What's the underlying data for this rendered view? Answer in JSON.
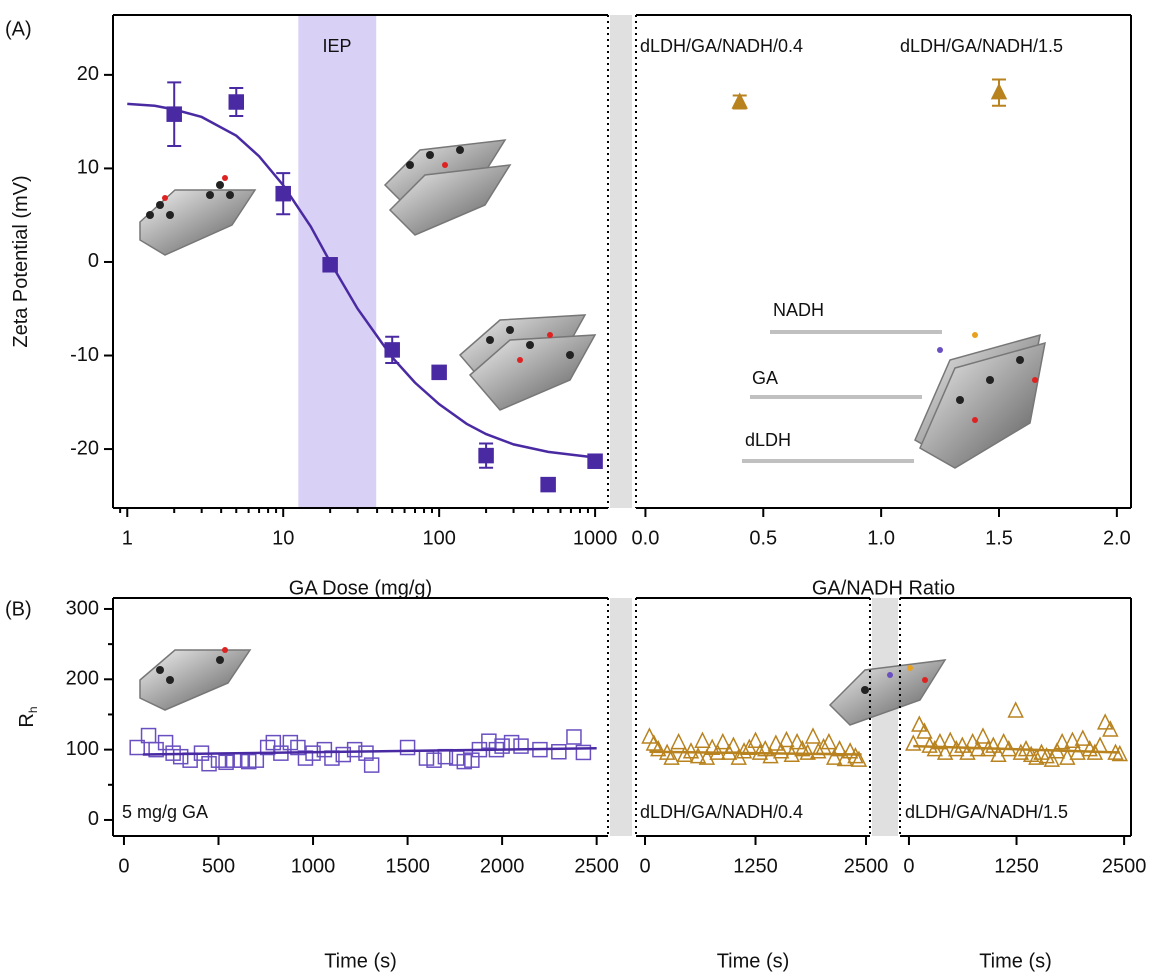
{
  "panel_labels": [
    "(A)",
    "(B)"
  ],
  "chart_data": [
    {
      "type": "scatter",
      "x_label": "GA Dose (mg/g)",
      "y_label": "Zeta Potential (mV)",
      "xscale": "log",
      "xlim": [
        0.81,
        1210
      ],
      "ylim": [
        -26.3,
        26.4
      ],
      "xticks": [
        1,
        10,
        100,
        1000
      ],
      "yticks": [
        -20,
        -10,
        0,
        10,
        20
      ],
      "shade": [
        12.5,
        39.5
      ],
      "shade_color": "#d9d0f5",
      "annotations": [
        "IEP"
      ],
      "series": [
        {
          "marker": "square",
          "filled": true,
          "color": "#4a2aa3",
          "x": [
            2,
            5,
            10,
            20,
            50,
            100,
            200,
            500,
            1000
          ],
          "values": [
            15.8,
            17.1,
            7.3,
            -0.3,
            -9.4,
            -11.8,
            -20.7,
            -23.8,
            -21.3
          ],
          "errors": [
            3.4,
            1.5,
            2.2,
            null,
            1.4,
            null,
            1.3,
            null,
            null
          ]
        },
        {
          "marker": "line",
          "color": "#4a2aa3",
          "x": [
            1,
            1.5,
            2,
            3,
            5,
            7,
            10,
            15,
            20,
            30,
            50,
            70,
            100,
            150,
            200,
            300,
            500,
            700,
            1000
          ],
          "values": [
            16.9,
            16.7,
            16.3,
            15.5,
            13.5,
            11.3,
            8.2,
            3.8,
            0.0,
            -5.0,
            -10.2,
            -12.9,
            -15.2,
            -17.3,
            -18.4,
            -19.5,
            -20.3,
            -20.6,
            -20.9
          ]
        }
      ]
    },
    {
      "type": "scatter",
      "x_label": "GA/NADH Ratio",
      "xlim": [
        -0.04,
        2.06
      ],
      "ylim": [
        -26.3,
        26.4
      ],
      "xticks": [
        {
          "value": 0,
          "label": "0.0"
        },
        0.5,
        {
          "value": 1,
          "label": "1.0"
        },
        1.5,
        {
          "value": 2,
          "label": "2.0"
        }
      ],
      "yticks": [
        -20,
        -10,
        0,
        10,
        20
      ],
      "annotations": [
        "dLDH/GA/NADH/0.4",
        "dLDH/GA/NADH/1.5",
        "NADH",
        "GA",
        "dLDH"
      ],
      "series": [
        {
          "marker": "triangle",
          "filled": true,
          "color": "#b8821e",
          "x": [
            0.4,
            1.5
          ],
          "values": [
            17.1,
            18.1
          ],
          "errors": [
            0.7,
            1.4
          ]
        }
      ]
    },
    {
      "type": "scatter",
      "x_label": "Time (s)",
      "y_label": "R",
      "y_label_sub": "h",
      "xlim": [
        -58,
        2560
      ],
      "ylim": [
        -22.8,
        315.6
      ],
      "xticks": [
        0,
        500,
        1000,
        1500,
        2000,
        2500
      ],
      "yticks": [
        0,
        100,
        200,
        300
      ],
      "yminor": [
        50,
        150,
        250
      ],
      "annotations": [
        "5 mg/g GA"
      ],
      "series": [
        {
          "marker": "square",
          "filled": false,
          "color": "#6a4fc0",
          "x": [
            70,
            130,
            170,
            220,
            260,
            300,
            350,
            410,
            450,
            500,
            540,
            580,
            620,
            660,
            700,
            760,
            790,
            830,
            880,
            920,
            960,
            1000,
            1060,
            1100,
            1160,
            1220,
            1280,
            1310,
            1500,
            1600,
            1640,
            1700,
            1760,
            1800,
            1840,
            1880,
            1930,
            1970,
            2000,
            2050,
            2100,
            2200,
            2300,
            2380,
            2430
          ],
          "values": [
            103,
            120,
            100,
            110,
            95,
            90,
            85,
            95,
            80,
            85,
            82,
            85,
            85,
            83,
            85,
            103,
            110,
            95,
            110,
            103,
            88,
            95,
            100,
            88,
            93,
            100,
            95,
            78,
            103,
            88,
            85,
            90,
            88,
            83,
            85,
            100,
            112,
            100,
            105,
            110,
            105,
            100,
            97,
            118,
            96
          ]
        },
        {
          "marker": "line",
          "color": "#4a2aa3",
          "x": [
            100,
            2500
          ],
          "values": [
            93,
            102
          ]
        }
      ]
    },
    {
      "type": "scatter",
      "x_label": "Time (s)",
      "xlim": [
        -102,
        2545
      ],
      "ylim": [
        -22.8,
        315.6
      ],
      "xticks": [
        0,
        1250,
        2500
      ],
      "yticks": [
        0,
        100,
        200,
        300
      ],
      "yminor": [
        50,
        150,
        250
      ],
      "annotations": [
        "dLDH/GA/NADH/0.4"
      ],
      "series": [
        {
          "marker": "triangle",
          "filled": false,
          "color": "#b8821e",
          "x": [
            50,
            100,
            150,
            250,
            300,
            380,
            450,
            520,
            600,
            650,
            700,
            760,
            820,
            880,
            950,
            1000,
            1060,
            1120,
            1180,
            1250,
            1300,
            1360,
            1420,
            1480,
            1540,
            1600,
            1660,
            1720,
            1780,
            1840,
            1900,
            1960,
            2020,
            2080,
            2140,
            2200,
            2260,
            2320,
            2380,
            2420
          ],
          "values": [
            118,
            108,
            100,
            95,
            88,
            110,
            92,
            97,
            90,
            112,
            88,
            102,
            95,
            110,
            95,
            105,
            88,
            97,
            102,
            112,
            95,
            100,
            90,
            108,
            97,
            113,
            92,
            110,
            100,
            95,
            118,
            97,
            103,
            110,
            88,
            100,
            86,
            97,
            90,
            85
          ]
        },
        {
          "marker": "line",
          "color": "#b8821e",
          "x": [
            50,
            2450
          ],
          "values": [
            97,
            93
          ]
        }
      ]
    },
    {
      "type": "scatter",
      "x_label": "Time (s)",
      "xlim": [
        -104,
        2580
      ],
      "ylim": [
        -22.8,
        315.6
      ],
      "xticks": [
        0,
        1250,
        2500
      ],
      "yticks": [
        0,
        100,
        200,
        300
      ],
      "yminor": [
        50,
        150,
        250
      ],
      "annotations": [
        "dLDH/GA/NADH/1.5"
      ],
      "series": [
        {
          "marker": "triangle",
          "filled": false,
          "color": "#b8821e",
          "x": [
            50,
            120,
            180,
            240,
            300,
            360,
            420,
            480,
            550,
            620,
            680,
            740,
            800,
            860,
            920,
            980,
            1040,
            1100,
            1160,
            1240,
            1300,
            1360,
            1420,
            1480,
            1540,
            1600,
            1660,
            1720,
            1780,
            1840,
            1900,
            1960,
            2020,
            2100,
            2160,
            2220,
            2280,
            2340,
            2400,
            2450
          ],
          "values": [
            108,
            135,
            125,
            105,
            100,
            110,
            95,
            112,
            100,
            105,
            95,
            110,
            100,
            118,
            100,
            105,
            92,
            110,
            100,
            155,
            95,
            100,
            92,
            88,
            95,
            90,
            85,
            97,
            110,
            88,
            112,
            95,
            115,
            100,
            95,
            105,
            138,
            128,
            95,
            93
          ]
        },
        {
          "marker": "line",
          "color": "#b8821e",
          "x": [
            50,
            2450
          ],
          "values": [
            105,
            96
          ]
        }
      ]
    }
  ]
}
